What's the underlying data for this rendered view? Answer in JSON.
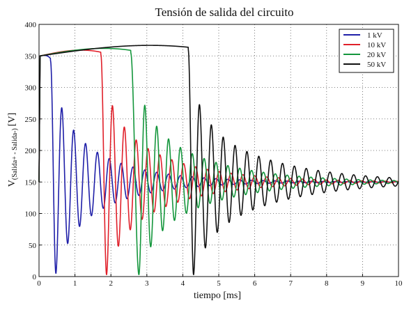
{
  "chart_data": {
    "type": "line",
    "title": "Tensión de salida del circuito",
    "xlabel": "tiempo [ms]",
    "ylabel": "V",
    "ylabel_subscript": "(Salida+ - Salida-)",
    "ylabel_unit": "[V]",
    "xlim": [
      0,
      10
    ],
    "ylim": [
      0,
      400
    ],
    "xticks": [
      0,
      1,
      2,
      3,
      4,
      5,
      6,
      7,
      8,
      9,
      10
    ],
    "yticks": [
      0,
      50,
      100,
      150,
      200,
      250,
      300,
      350,
      400
    ],
    "grid": true,
    "legend_position": "top-right",
    "series": [
      {
        "name": "1 kV",
        "color": "#1f1fa8",
        "plateau": {
          "t_start": 0.0,
          "t_end": 0.32,
          "v_start": 350,
          "v_peak": 352
        },
        "oscillation": {
          "t0": 0.47,
          "v_min": 5,
          "v_first_peak": 282,
          "period": 0.33,
          "steady": 150,
          "tau": 1.55
        }
      },
      {
        "name": "10 kV",
        "color": "#e0202a",
        "plateau": {
          "t_start": 0.0,
          "t_end": 1.72,
          "v_start": 350,
          "v_peak": 362
        },
        "oscillation": {
          "t0": 1.88,
          "v_min": 3,
          "v_first_peak": 282,
          "period": 0.33,
          "steady": 150,
          "tau": 1.8
        }
      },
      {
        "name": "20 kV",
        "color": "#14963c",
        "plateau": {
          "t_start": 0.0,
          "t_end": 2.55,
          "v_start": 350,
          "v_peak": 365
        },
        "oscillation": {
          "t0": 2.78,
          "v_min": 3,
          "v_first_peak": 282,
          "period": 0.33,
          "steady": 150,
          "tau": 1.9
        }
      },
      {
        "name": "50 kV",
        "color": "#111111",
        "plateau": {
          "t_start": 0.0,
          "t_end": 4.15,
          "v_start": 350,
          "v_peak": 370
        },
        "oscillation": {
          "t0": 4.3,
          "v_min": 3,
          "v_first_peak": 282,
          "period": 0.33,
          "steady": 150,
          "tau": 2.1
        }
      }
    ]
  }
}
